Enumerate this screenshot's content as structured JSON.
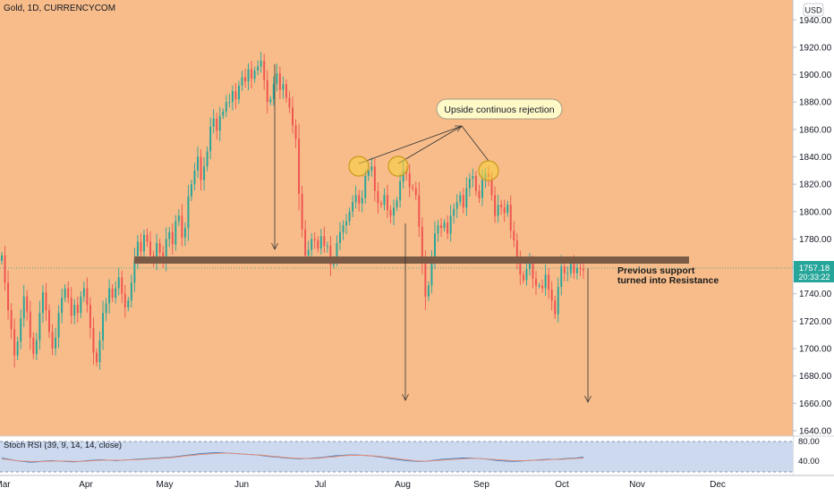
{
  "symbol_label": "Gold, 1D, CURRENCYCOM",
  "currency_badge": "USD",
  "colors": {
    "background": "#F7BC8A",
    "up": "#26A69A",
    "down": "#EF5350",
    "zone": "#7B5B46",
    "rsi_bg": "#CCD9EE",
    "rsi_k": "#3F7DBD",
    "rsi_d": "#E78A73",
    "price_badge": "#26A69A"
  },
  "chart_data": [
    {
      "type": "candlestick",
      "title": "Gold, 1D, CURRENCYCOM",
      "x_axis_labels": [
        "Mar",
        "Apr",
        "May",
        "Jun",
        "Jul",
        "Aug",
        "Sep",
        "Oct",
        "Nov",
        "Dec"
      ],
      "y_ticks": [
        1640,
        1660,
        1680,
        1700,
        1720,
        1740,
        1760,
        1780,
        1800,
        1820,
        1840,
        1860,
        1880,
        1900,
        1920,
        1940
      ],
      "ylim": [
        1638,
        1948
      ],
      "grid": false,
      "current_price": "1757.18",
      "countdown": "20:33:22",
      "closes": [
        1768,
        1748,
        1728,
        1714,
        1695,
        1705,
        1722,
        1738,
        1727,
        1708,
        1696,
        1706,
        1726,
        1741,
        1728,
        1712,
        1700,
        1708,
        1726,
        1737,
        1744,
        1737,
        1724,
        1732,
        1726,
        1738,
        1744,
        1732,
        1715,
        1697,
        1690,
        1706,
        1726,
        1733,
        1744,
        1737,
        1744,
        1752,
        1740,
        1730,
        1735,
        1748,
        1765,
        1778,
        1771,
        1783,
        1778,
        1768,
        1765,
        1777,
        1770,
        1763,
        1780,
        1785,
        1776,
        1793,
        1797,
        1781,
        1788,
        1811,
        1820,
        1830,
        1840,
        1823,
        1833,
        1844,
        1862,
        1868,
        1859,
        1870,
        1873,
        1880,
        1880,
        1888,
        1882,
        1892,
        1898,
        1895,
        1904,
        1897,
        1903,
        1906,
        1910,
        1896,
        1880,
        1882,
        1893,
        1901,
        1889,
        1893,
        1883,
        1876,
        1863,
        1853,
        1813,
        1787,
        1768,
        1772,
        1780,
        1779,
        1773,
        1782,
        1775,
        1775,
        1761,
        1765,
        1777,
        1785,
        1790,
        1793,
        1800,
        1807,
        1812,
        1806,
        1810,
        1826,
        1830,
        1833,
        1815,
        1806,
        1805,
        1812,
        1801,
        1797,
        1803,
        1808,
        1822,
        1830,
        1828,
        1818,
        1817,
        1812,
        1789,
        1763,
        1738,
        1746,
        1765,
        1784,
        1790,
        1788,
        1792,
        1784,
        1797,
        1802,
        1807,
        1812,
        1803,
        1817,
        1824,
        1826,
        1815,
        1810,
        1823,
        1828,
        1825,
        1812,
        1797,
        1805,
        1803,
        1799,
        1805,
        1786,
        1779,
        1765,
        1754,
        1750,
        1758,
        1763,
        1751,
        1746,
        1746,
        1744,
        1754,
        1743,
        1735,
        1725,
        1745,
        1760,
        1755,
        1755,
        1763,
        1755,
        1759,
        1758,
        1757
      ],
      "series": [
        {
          "name": "Stoch RSI (39, 9, 14, 14, close)",
          "values": [
            52,
            49,
            46,
            44,
            42,
            43,
            45,
            46,
            45,
            44,
            43,
            44,
            46,
            47,
            48,
            47,
            46,
            47,
            48,
            49,
            50,
            51,
            52,
            53,
            54,
            56,
            58,
            60,
            62,
            63,
            64,
            64,
            63,
            62,
            61,
            60,
            59,
            57,
            55,
            54,
            52,
            51,
            50,
            51,
            52,
            53,
            55,
            57,
            58,
            59,
            59,
            58,
            57,
            55,
            53,
            50,
            48,
            46,
            45,
            44,
            45,
            47,
            49,
            50,
            51,
            52,
            52,
            51,
            50,
            48,
            46,
            45,
            44,
            45,
            46,
            47,
            48,
            49,
            49,
            50,
            51,
            52,
            54
          ]
        },
        {
          "name": "Stoch RSI D",
          "values": [
            50,
            48,
            46,
            45,
            44,
            44,
            44,
            45,
            45,
            45,
            44,
            44,
            45,
            46,
            47,
            47,
            47,
            47,
            48,
            48,
            49,
            50,
            51,
            52,
            53,
            55,
            57,
            58,
            60,
            61,
            62,
            63,
            63,
            62,
            61,
            60,
            59,
            58,
            56,
            55,
            53,
            52,
            51,
            51,
            51,
            52,
            54,
            55,
            57,
            58,
            58,
            58,
            57,
            56,
            54,
            52,
            50,
            48,
            46,
            45,
            45,
            46,
            47,
            48,
            49,
            50,
            51,
            51,
            50,
            49,
            48,
            47,
            46,
            46,
            46,
            47,
            47,
            48,
            49,
            49,
            50,
            51,
            52
          ]
        }
      ],
      "rsi_ticks": [
        "80.00",
        "40.00"
      ],
      "annotations": {
        "callout": "Upside continuos rejection",
        "note_line1": "Previous support",
        "note_line2": "turned into Resistance"
      }
    }
  ]
}
